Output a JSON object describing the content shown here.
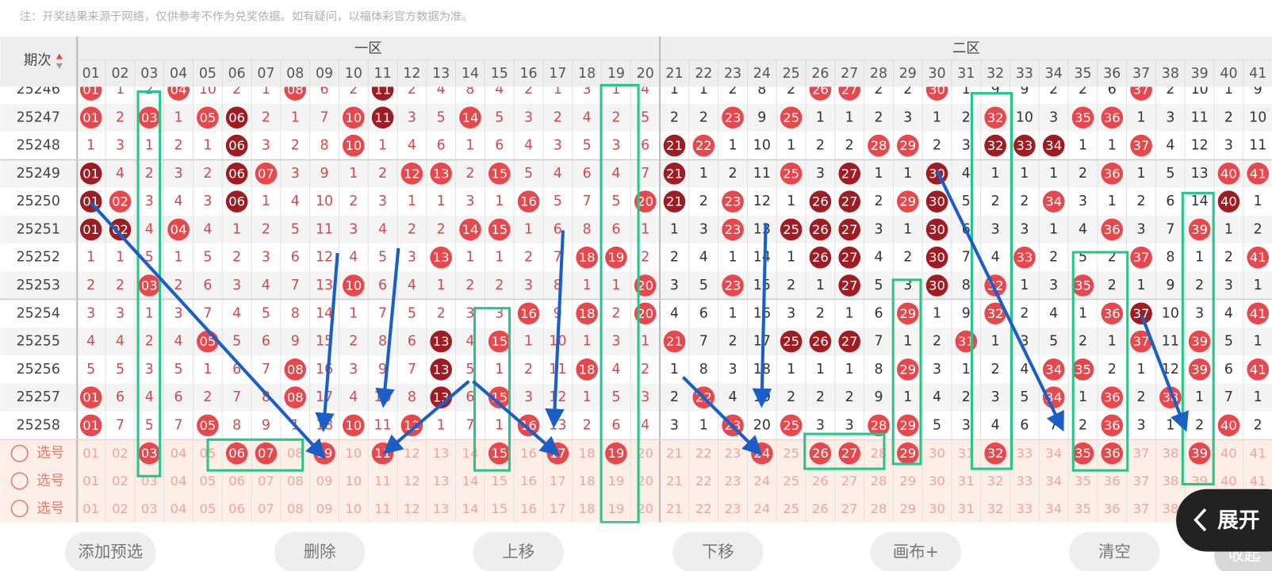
{
  "note": "注：开奖结果来源于网络，仅供参考不作为兑奖依据。如有疑问，以福体彩官方数据为准。",
  "header": {
    "issue_label": "期次",
    "zones": [
      "一区",
      "二区"
    ],
    "columns": [
      "01",
      "02",
      "03",
      "04",
      "05",
      "06",
      "07",
      "08",
      "09",
      "10",
      "11",
      "12",
      "13",
      "14",
      "15",
      "16",
      "17",
      "18",
      "19",
      "20",
      "21",
      "22",
      "23",
      "24",
      "25",
      "26",
      "27",
      "28",
      "29",
      "30",
      "31",
      "32",
      "33",
      "34",
      "35",
      "36",
      "37",
      "38",
      "39",
      "40",
      "41"
    ]
  },
  "ball_color": "#e8474b",
  "dark_ball_color": "#9e1c22",
  "rows": [
    {
      "issue": "25246",
      "cells": [
        {
          "ball": "01"
        },
        "1",
        "2",
        {
          "ball": "04"
        },
        "10",
        "2",
        "1",
        {
          "ball": "08"
        },
        "6",
        "2",
        {
          "ball": "11",
          "dark": true
        },
        "2",
        "4",
        "8",
        "4",
        "2",
        "1",
        "3",
        "1",
        "4",
        "1",
        "1",
        "2",
        "8",
        "2",
        {
          "ball": "26"
        },
        {
          "ball": "27"
        },
        "2",
        "2",
        {
          "ball": "30"
        },
        "1",
        "9",
        "9",
        "2",
        "2",
        "6",
        {
          "ball": "37"
        },
        "2",
        "10",
        "1",
        "9"
      ]
    },
    {
      "issue": "25247",
      "cells": [
        {
          "ball": "01"
        },
        "2",
        {
          "ball": "03"
        },
        "1",
        {
          "ball": "05"
        },
        {
          "ball": "06",
          "dark": true
        },
        "2",
        "1",
        "7",
        {
          "ball": "10"
        },
        {
          "ball": "11",
          "dark": true
        },
        "3",
        "5",
        {
          "ball": "14"
        },
        "5",
        "3",
        "2",
        "4",
        "2",
        "5",
        "2",
        "2",
        {
          "ball": "23"
        },
        "9",
        {
          "ball": "25"
        },
        "1",
        "1",
        "2",
        "3",
        "1",
        "2",
        {
          "ball": "32"
        },
        "10",
        "3",
        {
          "ball": "35"
        },
        {
          "ball": "36"
        },
        "1",
        "3",
        "11",
        "2",
        "10"
      ]
    },
    {
      "issue": "25248",
      "cells": [
        "1",
        "3",
        "1",
        "2",
        "1",
        {
          "ball": "06",
          "dark": true
        },
        "3",
        "2",
        "8",
        {
          "ball": "10"
        },
        "1",
        "4",
        "6",
        "1",
        "6",
        "4",
        "3",
        "5",
        "3",
        "6",
        {
          "ball": "21",
          "dark": true
        },
        {
          "ball": "22"
        },
        "1",
        "10",
        "1",
        "2",
        "2",
        {
          "ball": "28"
        },
        {
          "ball": "29"
        },
        "2",
        "3",
        {
          "ball": "32",
          "dark": true
        },
        {
          "ball": "33",
          "dark": true
        },
        {
          "ball": "34",
          "dark": true
        },
        "1",
        "1",
        {
          "ball": "37"
        },
        "4",
        "12",
        "3",
        "11"
      ]
    },
    {
      "issue": "25249",
      "cells": [
        {
          "ball": "01",
          "dark": true
        },
        "4",
        "2",
        "3",
        "2",
        {
          "ball": "06",
          "dark": true
        },
        {
          "ball": "07"
        },
        "3",
        "9",
        "1",
        "2",
        {
          "ball": "12"
        },
        {
          "ball": "13"
        },
        "2",
        {
          "ball": "15"
        },
        "5",
        "4",
        "6",
        "4",
        "7",
        {
          "ball": "21",
          "dark": true
        },
        "1",
        "2",
        "11",
        {
          "ball": "25"
        },
        "3",
        {
          "ball": "27",
          "dark": true
        },
        "1",
        "1",
        {
          "ball": "30",
          "dark": true
        },
        "4",
        "1",
        "1",
        "1",
        "2",
        {
          "ball": "36"
        },
        "1",
        "5",
        "13",
        {
          "ball": "40"
        },
        {
          "ball": "41"
        }
      ]
    },
    {
      "issue": "25250",
      "cells": [
        {
          "ball": "01",
          "dark": true
        },
        {
          "ball": "02"
        },
        "3",
        "4",
        "3",
        {
          "ball": "06",
          "dark": true
        },
        "1",
        "4",
        "10",
        "2",
        "3",
        "1",
        "1",
        "3",
        "1",
        {
          "ball": "16"
        },
        "5",
        "7",
        "5",
        {
          "ball": "20"
        },
        {
          "ball": "21",
          "dark": true
        },
        "2",
        {
          "ball": "23"
        },
        "12",
        "1",
        {
          "ball": "26",
          "dark": true
        },
        {
          "ball": "27",
          "dark": true
        },
        "2",
        {
          "ball": "29"
        },
        {
          "ball": "30",
          "dark": true
        },
        "5",
        "2",
        "2",
        {
          "ball": "34"
        },
        "3",
        "1",
        "2",
        "6",
        "14",
        {
          "ball": "40",
          "dark": true
        },
        "1"
      ]
    },
    {
      "issue": "25251",
      "cells": [
        {
          "ball": "01",
          "dark": true
        },
        {
          "ball": "02",
          "dark": true
        },
        "4",
        {
          "ball": "04"
        },
        "4",
        "1",
        "2",
        "5",
        "11",
        "3",
        "4",
        "2",
        "2",
        {
          "ball": "14"
        },
        {
          "ball": "15"
        },
        "1",
        "6",
        "8",
        "6",
        "1",
        "1",
        "3",
        {
          "ball": "23"
        },
        "13",
        {
          "ball": "25",
          "dark": true
        },
        {
          "ball": "26",
          "dark": true
        },
        {
          "ball": "27",
          "dark": true
        },
        "3",
        "1",
        {
          "ball": "30",
          "dark": true
        },
        "6",
        "3",
        "3",
        "1",
        "4",
        {
          "ball": "36"
        },
        "3",
        "7",
        {
          "ball": "39"
        },
        "1",
        "2"
      ]
    },
    {
      "issue": "25252",
      "cells": [
        "1",
        "1",
        "5",
        "1",
        "5",
        "2",
        "3",
        "6",
        "12",
        "4",
        "5",
        "3",
        {
          "ball": "13"
        },
        "1",
        "1",
        "2",
        "7",
        {
          "ball": "18"
        },
        {
          "ball": "19"
        },
        "2",
        "2",
        "4",
        "1",
        "14",
        "1",
        {
          "ball": "26",
          "dark": true
        },
        {
          "ball": "27",
          "dark": true
        },
        "4",
        "2",
        {
          "ball": "30",
          "dark": true
        },
        "7",
        "4",
        {
          "ball": "33"
        },
        "2",
        "5",
        "2",
        {
          "ball": "37"
        },
        "8",
        "1",
        "2",
        {
          "ball": "41"
        }
      ]
    },
    {
      "issue": "25253",
      "cells": [
        "2",
        "2",
        {
          "ball": "03"
        },
        "2",
        "6",
        "3",
        "4",
        "7",
        "13",
        {
          "ball": "10"
        },
        "6",
        "4",
        "1",
        "2",
        "2",
        "3",
        "8",
        "1",
        "1",
        {
          "ball": "20"
        },
        "3",
        "5",
        {
          "ball": "23"
        },
        "15",
        "2",
        "1",
        {
          "ball": "27",
          "dark": true
        },
        "5",
        "3",
        {
          "ball": "30",
          "dark": true
        },
        "8",
        {
          "ball": "32"
        },
        "1",
        "3",
        {
          "ball": "35"
        },
        "2",
        "1",
        "9",
        "2",
        "3",
        "1"
      ]
    },
    {
      "issue": "25254",
      "cells": [
        "3",
        "3",
        "1",
        "3",
        "7",
        "4",
        "5",
        "8",
        "14",
        "1",
        "7",
        "5",
        "2",
        "3",
        "3",
        {
          "ball": "16"
        },
        "9",
        {
          "ball": "18"
        },
        "2",
        {
          "ball": "20"
        },
        "4",
        "6",
        "1",
        "16",
        "3",
        "2",
        "1",
        "6",
        {
          "ball": "29"
        },
        "1",
        "9",
        {
          "ball": "32"
        },
        "2",
        "4",
        "1",
        {
          "ball": "36"
        },
        {
          "ball": "37",
          "dark": true
        },
        "10",
        "3",
        "4",
        {
          "ball": "41"
        }
      ]
    },
    {
      "issue": "25255",
      "cells": [
        "4",
        "4",
        "2",
        "4",
        {
          "ball": "05"
        },
        "5",
        "6",
        "9",
        "15",
        "2",
        "8",
        "6",
        {
          "ball": "13",
          "dark": true
        },
        "4",
        {
          "ball": "15"
        },
        "1",
        "10",
        "1",
        "3",
        "1",
        {
          "ball": "21"
        },
        "7",
        "2",
        "17",
        {
          "ball": "25",
          "dark": true
        },
        {
          "ball": "26",
          "dark": true
        },
        {
          "ball": "27",
          "dark": true
        },
        "7",
        "1",
        "2",
        {
          "ball": "31"
        },
        "1",
        "3",
        "5",
        "2",
        "1",
        {
          "ball": "37"
        },
        "11",
        {
          "ball": "39"
        },
        "5",
        "1"
      ]
    },
    {
      "issue": "25256",
      "cells": [
        "5",
        "5",
        "3",
        "5",
        "1",
        "6",
        "7",
        {
          "ball": "08"
        },
        "16",
        "3",
        "9",
        "7",
        {
          "ball": "13",
          "dark": true
        },
        "5",
        "1",
        "2",
        "11",
        {
          "ball": "18"
        },
        "4",
        "2",
        "1",
        "8",
        "3",
        "18",
        "1",
        "1",
        "1",
        "8",
        {
          "ball": "29"
        },
        "3",
        "1",
        "2",
        "4",
        {
          "ball": "34"
        },
        {
          "ball": "35"
        },
        "2",
        "1",
        "12",
        {
          "ball": "39"
        },
        "6",
        {
          "ball": "41"
        }
      ]
    },
    {
      "issue": "25257",
      "cells": [
        {
          "ball": "01"
        },
        "6",
        "4",
        "6",
        "2",
        "7",
        "8",
        {
          "ball": "08"
        },
        "17",
        "4",
        "10",
        "8",
        {
          "ball": "13",
          "dark": true
        },
        "6",
        {
          "ball": "15"
        },
        "3",
        "12",
        "1",
        "5",
        "3",
        "2",
        {
          "ball": "22"
        },
        "4",
        "19",
        "2",
        "2",
        "2",
        "9",
        "1",
        "4",
        "2",
        "3",
        "5",
        {
          "ball": "34"
        },
        "1",
        {
          "ball": "36"
        },
        "2",
        {
          "ball": "38"
        },
        "1",
        "7",
        "1"
      ]
    },
    {
      "issue": "25258",
      "cells": [
        {
          "ball": "01"
        },
        "7",
        "5",
        "7",
        {
          "ball": "05"
        },
        "8",
        "9",
        "1",
        "18",
        {
          "ball": "10"
        },
        "11",
        {
          "ball": "12"
        },
        "1",
        "7",
        "1",
        {
          "ball": "16"
        },
        "13",
        "2",
        "6",
        "4",
        "3",
        "1",
        {
          "ball": "23"
        },
        "20",
        {
          "ball": "25"
        },
        "3",
        "3",
        {
          "ball": "28"
        },
        {
          "ball": "29"
        },
        "5",
        "3",
        "4",
        "6",
        "7",
        "2",
        {
          "ball": "36"
        },
        "3",
        "1",
        "2",
        {
          "ball": "40"
        },
        "2"
      ]
    }
  ],
  "picks": [
    {
      "label": "选号",
      "selected": [
        "03",
        "06",
        "07",
        "09",
        "11",
        "15",
        "17",
        "19",
        "24",
        "26",
        "27",
        "29",
        "32",
        "35",
        "36",
        "39"
      ]
    },
    {
      "label": "选号",
      "selected": []
    },
    {
      "label": "选号",
      "selected": []
    }
  ],
  "buttons": [
    "添加预选",
    "删除",
    "上移",
    "下移",
    "画布+",
    "清空"
  ],
  "collapse": "收起",
  "expand": "展开"
}
